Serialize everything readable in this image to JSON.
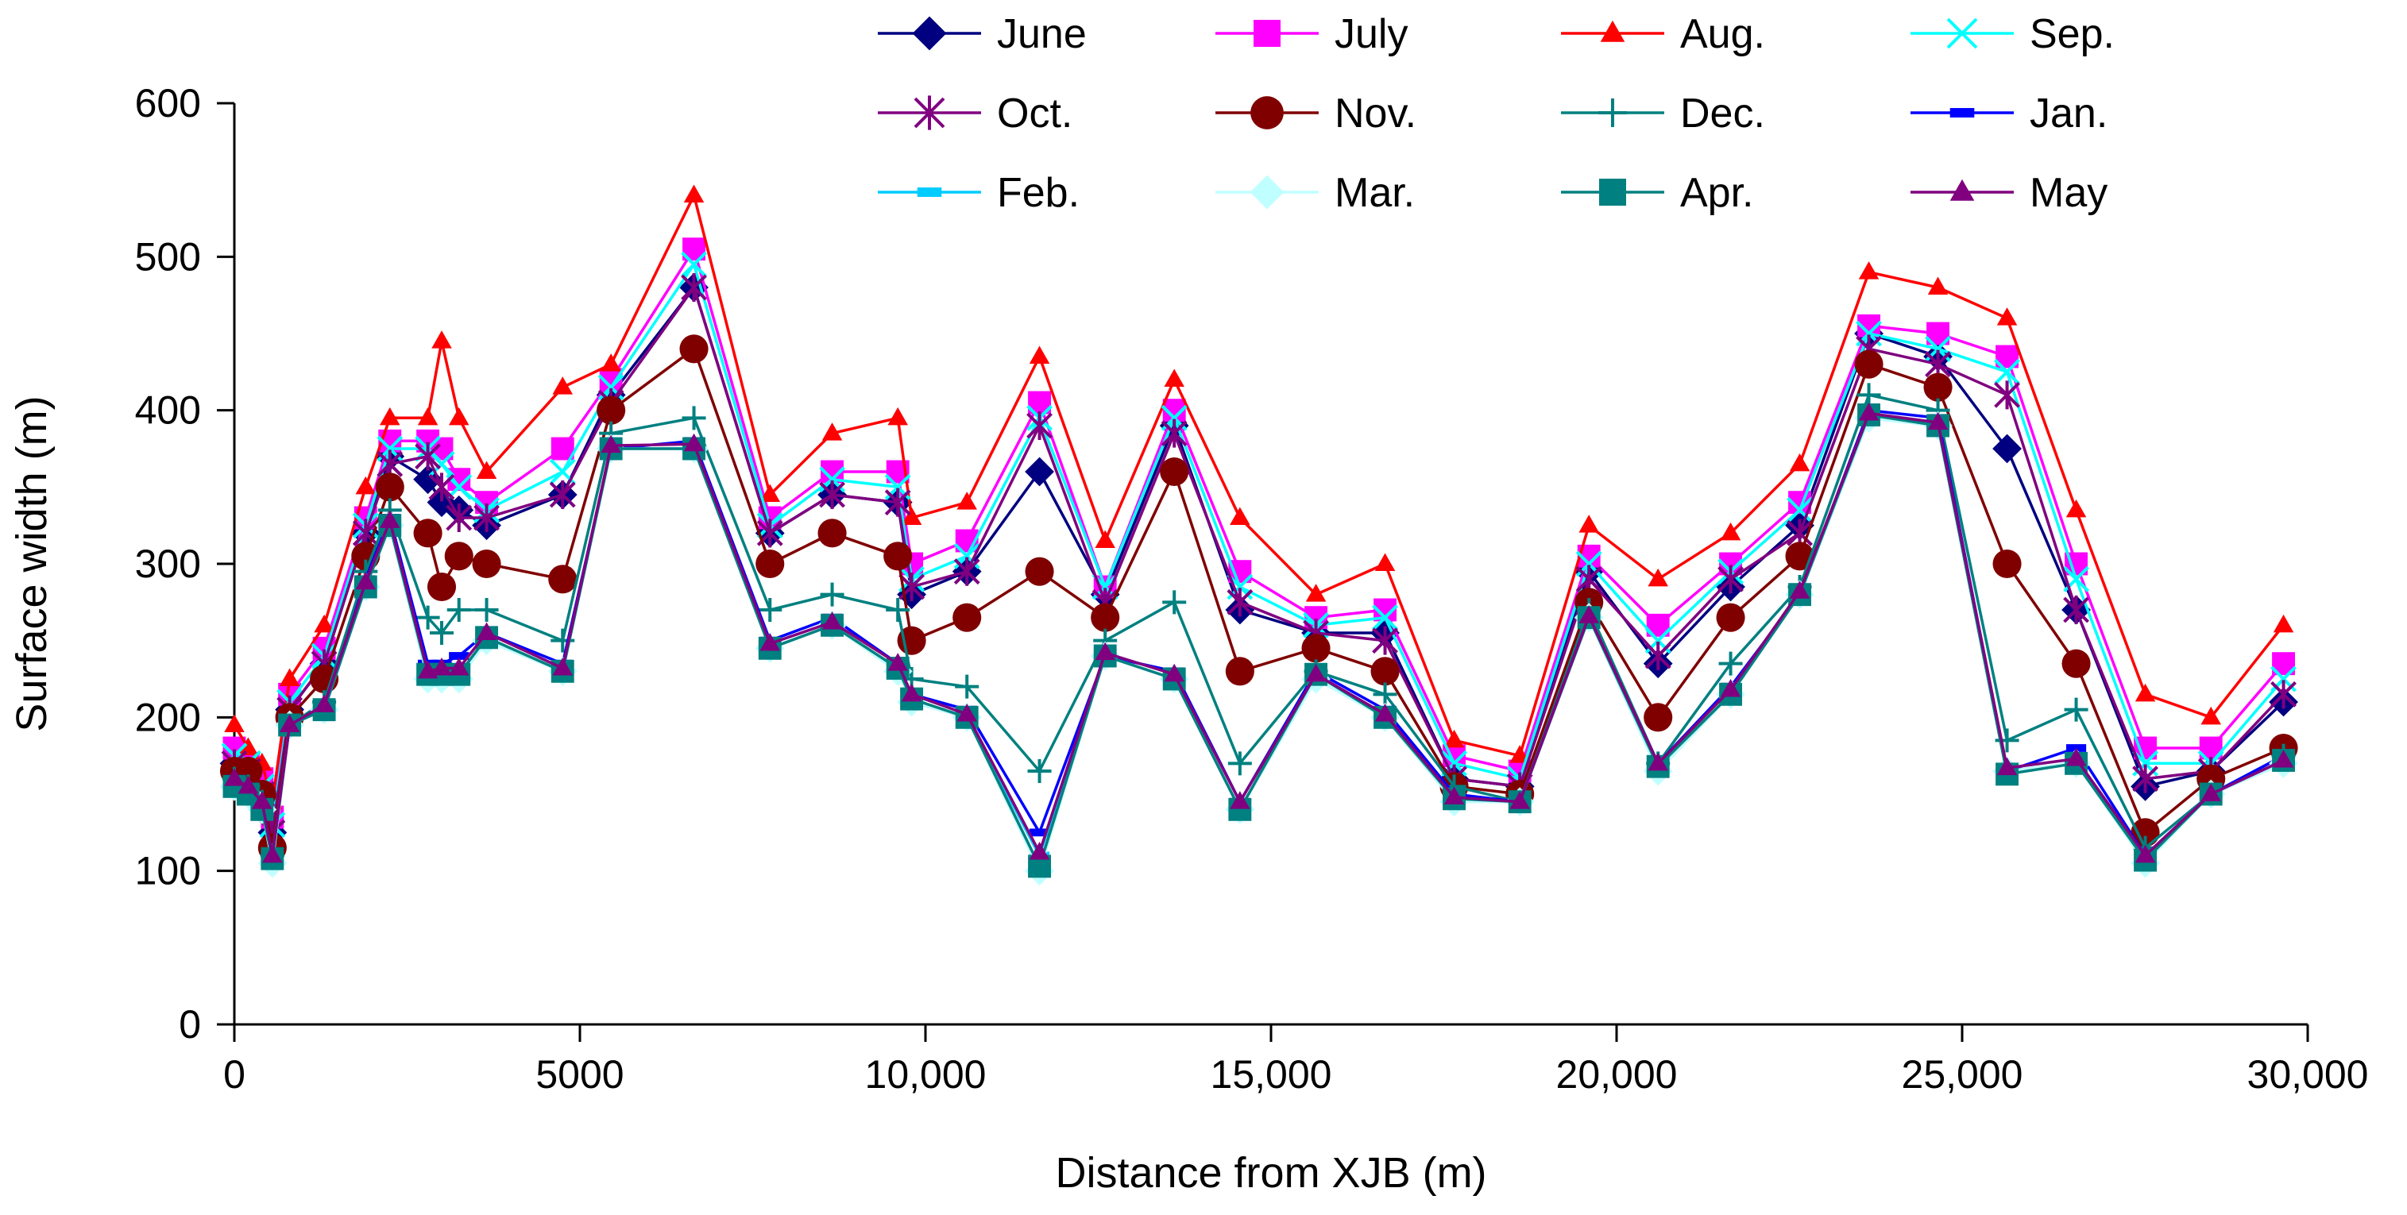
{
  "chart_data": {
    "type": "line",
    "title": "",
    "xlabel": "Distance from XJB (m)",
    "ylabel": "Surface width (m)",
    "xlim": [
      0,
      30000
    ],
    "ylim": [
      0,
      600
    ],
    "x_ticks": [
      0,
      5000,
      10000,
      15000,
      20000,
      25000,
      30000
    ],
    "x_tick_labels": [
      "0",
      "5000",
      "10,000",
      "15,000",
      "20,000",
      "25,000",
      "30,000"
    ],
    "y_ticks": [
      0,
      100,
      200,
      300,
      400,
      500,
      600
    ],
    "y_tick_labels": [
      "0",
      "100",
      "200",
      "300",
      "400",
      "500",
      "600"
    ],
    "grid": false,
    "legend_position": "top",
    "x": [
      0,
      200,
      400,
      550,
      800,
      1300,
      1900,
      2250,
      2800,
      3000,
      3250,
      3650,
      4750,
      5450,
      6650,
      7750,
      8650,
      9600,
      9800,
      10600,
      11650,
      12600,
      13600,
      14550,
      15650,
      16650,
      17650,
      18600,
      19600,
      20600,
      21650,
      22650,
      23650,
      24650,
      25650,
      26650,
      27650,
      28600,
      29650
    ],
    "series": [
      {
        "name": "June",
        "color": "#000080",
        "marker": "diamond",
        "values": [
          170,
          165,
          150,
          125,
          205,
          235,
          320,
          370,
          355,
          340,
          335,
          325,
          345,
          410,
          480,
          320,
          345,
          340,
          280,
          295,
          360,
          280,
          390,
          270,
          255,
          255,
          160,
          155,
          295,
          235,
          285,
          325,
          450,
          435,
          375,
          270,
          155,
          165,
          210
        ]
      },
      {
        "name": "July",
        "color": "#ff00ff",
        "marker": "square",
        "values": [
          180,
          170,
          160,
          135,
          215,
          245,
          330,
          380,
          380,
          375,
          355,
          340,
          375,
          420,
          505,
          330,
          360,
          360,
          300,
          315,
          405,
          285,
          400,
          295,
          265,
          270,
          175,
          165,
          305,
          260,
          300,
          340,
          455,
          450,
          435,
          300,
          180,
          180,
          235
        ]
      },
      {
        "name": "Aug.",
        "color": "#ff0000",
        "marker": "triangle",
        "values": [
          195,
          180,
          170,
          145,
          225,
          260,
          350,
          395,
          395,
          445,
          395,
          360,
          415,
          430,
          540,
          345,
          385,
          395,
          330,
          340,
          435,
          315,
          420,
          330,
          280,
          300,
          185,
          175,
          325,
          290,
          320,
          365,
          490,
          480,
          460,
          335,
          215,
          200,
          260
        ]
      },
      {
        "name": "Sep.",
        "color": "#00ffff",
        "marker": "x",
        "values": [
          175,
          170,
          155,
          130,
          210,
          240,
          325,
          375,
          375,
          365,
          350,
          335,
          360,
          415,
          495,
          325,
          355,
          350,
          290,
          305,
          395,
          285,
          395,
          285,
          260,
          265,
          170,
          160,
          300,
          250,
          295,
          335,
          450,
          440,
          425,
          290,
          170,
          170,
          225
        ]
      },
      {
        "name": "Oct.",
        "color": "#800080",
        "marker": "asterisk",
        "values": [
          170,
          165,
          150,
          125,
          205,
          235,
          320,
          365,
          370,
          350,
          330,
          330,
          345,
          405,
          480,
          320,
          345,
          340,
          285,
          295,
          390,
          275,
          385,
          275,
          255,
          250,
          160,
          155,
          290,
          240,
          290,
          320,
          440,
          430,
          410,
          270,
          160,
          165,
          215
        ]
      },
      {
        "name": "Nov.",
        "color": "#800000",
        "marker": "circle",
        "values": [
          165,
          165,
          150,
          115,
          200,
          225,
          305,
          350,
          320,
          285,
          305,
          300,
          290,
          400,
          440,
          300,
          320,
          305,
          250,
          265,
          295,
          265,
          360,
          230,
          245,
          230,
          155,
          150,
          275,
          200,
          265,
          305,
          430,
          415,
          300,
          235,
          125,
          160,
          180
        ]
      },
      {
        "name": "Dec.",
        "color": "#008080",
        "marker": "plus",
        "values": [
          160,
          155,
          145,
          110,
          195,
          210,
          295,
          335,
          265,
          255,
          270,
          270,
          250,
          385,
          395,
          270,
          280,
          270,
          225,
          220,
          165,
          250,
          275,
          170,
          230,
          215,
          155,
          145,
          270,
          170,
          235,
          285,
          410,
          400,
          185,
          205,
          115,
          150,
          175
        ]
      },
      {
        "name": "Jan.",
        "color": "#0000ff",
        "marker": "dash",
        "values": [
          160,
          155,
          145,
          110,
          195,
          205,
          290,
          330,
          235,
          235,
          240,
          255,
          235,
          375,
          380,
          250,
          265,
          235,
          215,
          205,
          125,
          240,
          230,
          145,
          230,
          205,
          150,
          145,
          265,
          170,
          220,
          280,
          400,
          395,
          165,
          180,
          110,
          150,
          175
        ]
      },
      {
        "name": "Feb.",
        "color": "#00ccff",
        "marker": "dash",
        "values": [
          155,
          150,
          140,
          110,
          195,
          205,
          285,
          325,
          225,
          225,
          225,
          250,
          230,
          375,
          375,
          245,
          260,
          230,
          210,
          200,
          110,
          240,
          225,
          140,
          225,
          200,
          145,
          145,
          265,
          165,
          215,
          280,
          395,
          390,
          165,
          170,
          110,
          150,
          170
        ]
      },
      {
        "name": "Mar.",
        "color": "#c0ffff",
        "marker": "diamond",
        "values": [
          155,
          150,
          140,
          105,
          195,
          205,
          285,
          325,
          225,
          225,
          225,
          250,
          230,
          375,
          375,
          245,
          260,
          230,
          210,
          200,
          100,
          240,
          225,
          140,
          225,
          200,
          145,
          145,
          265,
          165,
          215,
          280,
          395,
          390,
          165,
          170,
          105,
          150,
          170
        ]
      },
      {
        "name": "Apr.",
        "color": "#008080",
        "marker": "square",
        "values": [
          155,
          150,
          140,
          108,
          195,
          205,
          285,
          325,
          228,
          228,
          228,
          252,
          230,
          375,
          375,
          245,
          260,
          232,
          212,
          200,
          103,
          240,
          225,
          140,
          228,
          200,
          147,
          145,
          265,
          168,
          215,
          280,
          397,
          390,
          163,
          170,
          107,
          150,
          172
        ]
      },
      {
        "name": "May",
        "color": "#800080",
        "marker": "triangle",
        "values": [
          160,
          155,
          145,
          110,
          195,
          208,
          288,
          328,
          230,
          232,
          232,
          255,
          232,
          377,
          378,
          248,
          262,
          235,
          215,
          202,
          112,
          242,
          228,
          145,
          228,
          202,
          148,
          145,
          266,
          170,
          218,
          282,
          398,
          392,
          167,
          173,
          110,
          150,
          172
        ]
      }
    ]
  }
}
